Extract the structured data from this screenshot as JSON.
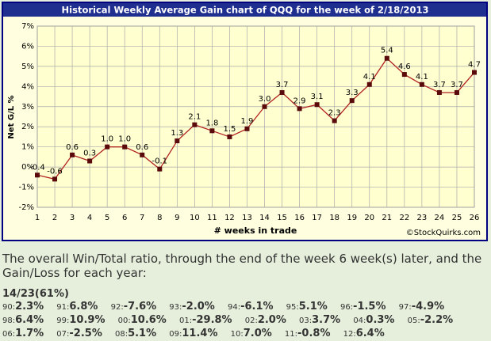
{
  "chart_data": {
    "type": "line",
    "title": "Historical Weekly Average Gain chart of QQQ for the week of 2/18/2013",
    "y_label": "Net G/L %",
    "x_label": "# weeks in trade",
    "watermark": "©StockQuirks.com",
    "x": [
      1,
      2,
      3,
      4,
      5,
      6,
      7,
      8,
      9,
      10,
      11,
      12,
      13,
      14,
      15,
      16,
      17,
      18,
      19,
      20,
      21,
      22,
      23,
      24,
      25,
      26
    ],
    "series": [
      {
        "name": "QQQ",
        "color": "#b22222",
        "marker_color": "#5a0a0a",
        "values": [
          -0.4,
          -0.6,
          0.6,
          0.3,
          1.0,
          1.0,
          0.6,
          -0.1,
          1.3,
          2.1,
          1.8,
          1.5,
          1.9,
          3.0,
          3.7,
          2.9,
          3.1,
          2.3,
          3.3,
          4.1,
          5.4,
          4.6,
          4.1,
          3.7,
          3.7,
          4.7
        ],
        "value_labels": [
          "-0.4",
          "-0.6",
          "0.6",
          "0.3",
          "1.0",
          "1.0",
          "0.6",
          "-0.1",
          "1.3",
          "2.1",
          "1.8",
          "1.5",
          "1.9",
          "3.0",
          "3.7",
          "2.9",
          "3.1",
          "2.3",
          "3.3",
          "4.1",
          "5.4",
          "4.6",
          "4.1",
          "3.7",
          "3.7",
          "4.7"
        ]
      }
    ],
    "xlim": [
      1,
      26
    ],
    "xticks": [
      1,
      2,
      3,
      4,
      5,
      6,
      7,
      8,
      9,
      10,
      11,
      12,
      13,
      14,
      15,
      16,
      17,
      18,
      19,
      20,
      21,
      22,
      23,
      24,
      25,
      26
    ],
    "ylim": [
      -2,
      7
    ],
    "yticks": [
      {
        "value": -2,
        "label": "-2%"
      },
      {
        "value": -1,
        "label": "-1%"
      },
      {
        "value": 0,
        "label": "0%"
      },
      {
        "value": 1,
        "label": "1%"
      },
      {
        "value": 2,
        "label": "2%"
      },
      {
        "value": 3,
        "label": "3%"
      },
      {
        "value": 4,
        "label": "4%"
      },
      {
        "value": 5,
        "label": "5%"
      },
      {
        "value": 6,
        "label": "6%"
      },
      {
        "value": 7,
        "label": "7%"
      }
    ],
    "grid": true
  },
  "summary": {
    "intro": "The overall Win/Total ratio, through the end of the week 6 week(s) later, and the Gain/Loss for each year:",
    "ratio": "14/23(61%)",
    "years": [
      {
        "year": "90:",
        "value": "2.3%"
      },
      {
        "year": "91:",
        "value": "6.8%"
      },
      {
        "year": "92:",
        "value": "-7.6%"
      },
      {
        "year": "93:",
        "value": "-2.0%"
      },
      {
        "year": "94:",
        "value": "-6.1%"
      },
      {
        "year": "95:",
        "value": "5.1%"
      },
      {
        "year": "96:",
        "value": "-1.5%"
      },
      {
        "year": "97:",
        "value": "-4.9%"
      },
      {
        "year": "98:",
        "value": "6.4%"
      },
      {
        "year": "99:",
        "value": "10.9%"
      },
      {
        "year": "00:",
        "value": "10.6%"
      },
      {
        "year": "01:",
        "value": "-29.8%"
      },
      {
        "year": "02:",
        "value": "2.0%"
      },
      {
        "year": "03:",
        "value": "3.7%"
      },
      {
        "year": "04:",
        "value": "0.3%"
      },
      {
        "year": "05:",
        "value": "-2.2%"
      },
      {
        "year": "06:",
        "value": "1.7%"
      },
      {
        "year": "07:",
        "value": "-2.5%"
      },
      {
        "year": "08:",
        "value": "5.1%"
      },
      {
        "year": "09:",
        "value": "11.4%"
      },
      {
        "year": "10:",
        "value": "7.0%"
      },
      {
        "year": "11:",
        "value": "-0.8%"
      },
      {
        "year": "12:",
        "value": "6.4%"
      }
    ]
  }
}
